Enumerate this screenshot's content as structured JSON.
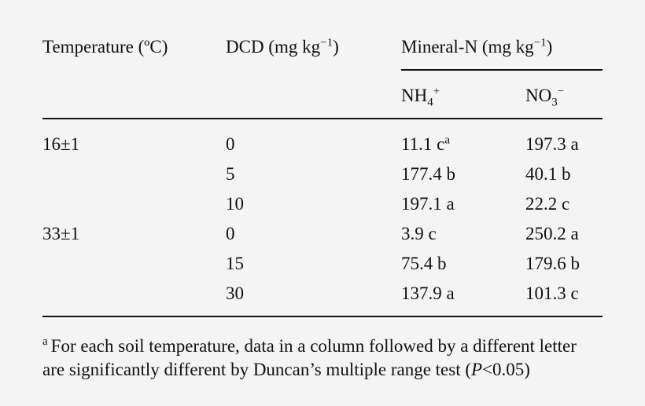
{
  "headers": {
    "temperature": "Temperature (ºC)",
    "dcd_prefix": "DCD (mg kg",
    "dcd_exp": "−1",
    "dcd_suffix": ")",
    "mineral_prefix": "Mineral-N (mg kg",
    "mineral_exp": "−1",
    "mineral_suffix": ")",
    "nh4_base": "NH",
    "nh4_sub": "4",
    "nh4_sup": "+",
    "no3_base": "NO",
    "no3_sub": "3",
    "no3_sup": "−"
  },
  "rows": [
    {
      "temp": "16±1",
      "dcd": "0",
      "nh4": "11.1 c",
      "nh4_mark": "a",
      "no3": "197.3 a"
    },
    {
      "temp": "",
      "dcd": "5",
      "nh4": "177.4 b",
      "nh4_mark": "",
      "no3": "40.1 b"
    },
    {
      "temp": "",
      "dcd": "10",
      "nh4": "197.1 a",
      "nh4_mark": "",
      "no3": "22.2 c"
    },
    {
      "temp": "33±1",
      "dcd": "0",
      "nh4": "3.9 c",
      "nh4_mark": "",
      "no3": "250.2 a"
    },
    {
      "temp": "",
      "dcd": "15",
      "nh4": "75.4 b",
      "nh4_mark": "",
      "no3": "179.6 b"
    },
    {
      "temp": "",
      "dcd": "30",
      "nh4": "137.9 a",
      "nh4_mark": "",
      "no3": "101.3 c"
    }
  ],
  "footnote": {
    "mark": "a",
    "line1": "For each soil temperature, data in a column followed by a different letter",
    "line2_prefix": "are significantly different by Duncan’s multiple range test (",
    "p_symbol": "P",
    "line2_suffix": "<0.05)"
  }
}
